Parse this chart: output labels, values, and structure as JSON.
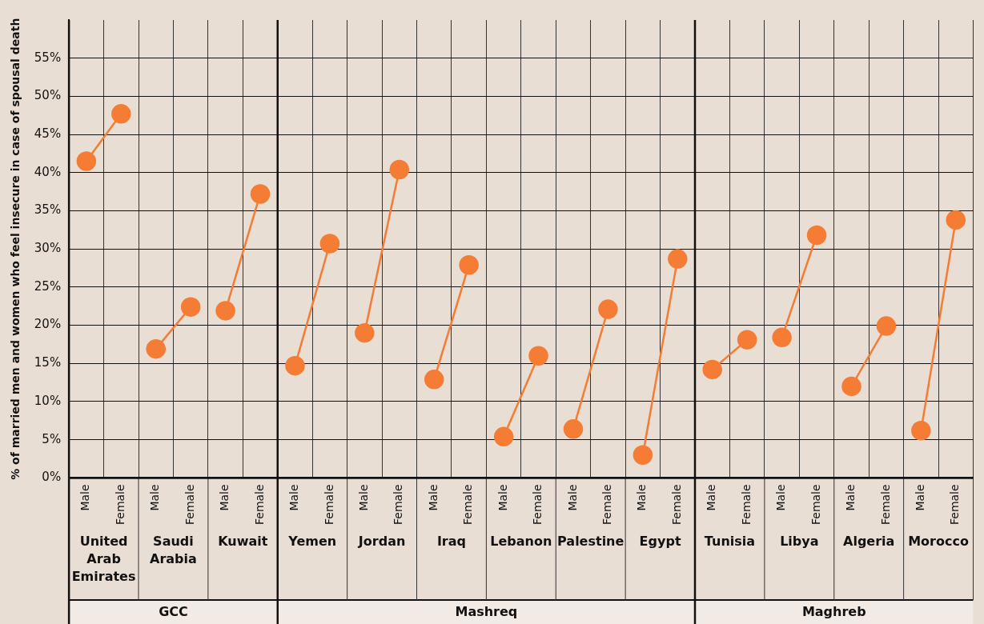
{
  "chart_data": {
    "type": "line",
    "ylabel": "% of married men and women who feel insecure in case of spousal death",
    "categories": [
      "Male",
      "Female",
      "Male",
      "Female",
      "Male",
      "Female",
      "Male",
      "Female",
      "Male",
      "Female",
      "Male",
      "Female",
      "Male",
      "Female",
      "Male",
      "Female",
      "Male",
      "Female",
      "Male",
      "Female",
      "Male",
      "Female",
      "Male",
      "Female",
      "Male",
      "Female"
    ],
    "series": [
      {
        "color": "#f47c34",
        "values": [
          41.5,
          47.7,
          null,
          null,
          null,
          null,
          null,
          null,
          null,
          null,
          null,
          null,
          null,
          null,
          null,
          null,
          null,
          null,
          null,
          null,
          null,
          null,
          null,
          null,
          null,
          null
        ]
      },
      {
        "color": "#f47c34",
        "values": [
          null,
          null,
          16.9,
          22.4,
          null,
          null,
          null,
          null,
          null,
          null,
          null,
          null,
          null,
          null,
          null,
          null,
          null,
          null,
          null,
          null,
          null,
          null,
          null,
          null,
          null,
          null
        ]
      },
      {
        "color": "#f47c34",
        "values": [
          null,
          null,
          null,
          null,
          21.9,
          37.2,
          null,
          null,
          null,
          null,
          null,
          null,
          null,
          null,
          null,
          null,
          null,
          null,
          null,
          null,
          null,
          null,
          null,
          null,
          null,
          null
        ]
      },
      {
        "color": "#f47c34",
        "values": [
          null,
          null,
          null,
          null,
          null,
          null,
          14.7,
          30.7,
          null,
          null,
          null,
          null,
          null,
          null,
          null,
          null,
          null,
          null,
          null,
          null,
          null,
          null,
          null,
          null,
          null,
          null
        ]
      },
      {
        "color": "#f47c34",
        "values": [
          null,
          null,
          null,
          null,
          null,
          null,
          null,
          null,
          19.0,
          40.4,
          null,
          null,
          null,
          null,
          null,
          null,
          null,
          null,
          null,
          null,
          null,
          null,
          null,
          null,
          null,
          null
        ]
      },
      {
        "color": "#f47c34",
        "values": [
          null,
          null,
          null,
          null,
          null,
          null,
          null,
          null,
          null,
          null,
          12.9,
          27.9,
          null,
          null,
          null,
          null,
          null,
          null,
          null,
          null,
          null,
          null,
          null,
          null,
          null,
          null
        ]
      },
      {
        "color": "#f47c34",
        "values": [
          null,
          null,
          null,
          null,
          null,
          null,
          null,
          null,
          null,
          null,
          null,
          null,
          5.4,
          16.0,
          null,
          null,
          null,
          null,
          null,
          null,
          null,
          null,
          null,
          null,
          null,
          null
        ]
      },
      {
        "color": "#f47c34",
        "values": [
          null,
          null,
          null,
          null,
          null,
          null,
          null,
          null,
          null,
          null,
          null,
          null,
          null,
          null,
          6.4,
          22.1,
          null,
          null,
          null,
          null,
          null,
          null,
          null,
          null,
          null,
          null
        ]
      },
      {
        "color": "#f47c34",
        "values": [
          null,
          null,
          null,
          null,
          null,
          null,
          null,
          null,
          null,
          null,
          null,
          null,
          null,
          null,
          null,
          null,
          3.0,
          28.7,
          null,
          null,
          null,
          null,
          null,
          null,
          null,
          null
        ]
      },
      {
        "color": "#f47c34",
        "values": [
          null,
          null,
          null,
          null,
          null,
          null,
          null,
          null,
          null,
          null,
          null,
          null,
          null,
          null,
          null,
          null,
          null,
          null,
          14.2,
          18.1,
          null,
          null,
          null,
          null,
          null,
          null
        ]
      },
      {
        "color": "#f47c34",
        "values": [
          null,
          null,
          null,
          null,
          null,
          null,
          null,
          null,
          null,
          null,
          null,
          null,
          null,
          null,
          null,
          null,
          null,
          null,
          null,
          null,
          18.4,
          31.8,
          null,
          null,
          null,
          null
        ]
      },
      {
        "color": "#f47c34",
        "values": [
          null,
          null,
          null,
          null,
          null,
          null,
          null,
          null,
          null,
          null,
          null,
          null,
          null,
          null,
          null,
          null,
          null,
          null,
          null,
          null,
          null,
          null,
          12.0,
          19.9,
          null,
          null
        ]
      },
      {
        "color": "#f47c34",
        "values": [
          null,
          null,
          null,
          null,
          null,
          null,
          null,
          null,
          null,
          null,
          null,
          null,
          null,
          null,
          null,
          null,
          null,
          null,
          null,
          null,
          null,
          null,
          null,
          null,
          6.2,
          33.8
        ]
      }
    ],
    "annotations": [
      "United Arab Emirates",
      "Saudi Arabia",
      "Kuwait",
      "Yemen",
      "Jordan",
      "Iraq",
      "Lebanon",
      "Palestine",
      "Egypt",
      "Tunisia",
      "Libya",
      "Algeria",
      "Morocco",
      "GCC",
      "Mashreq",
      "Maghreb"
    ],
    "ylim": [
      0,
      60
    ],
    "yticks": [
      {
        "value": 0,
        "label": "0%"
      },
      {
        "value": 5,
        "label": "5%"
      },
      {
        "value": 10,
        "label": "10%"
      },
      {
        "value": 15,
        "label": "15%"
      },
      {
        "value": 20,
        "label": "20%"
      },
      {
        "value": 25,
        "label": "25%"
      },
      {
        "value": 30,
        "label": "30%"
      },
      {
        "value": 35,
        "label": "35%"
      },
      {
        "value": 40,
        "label": "40%"
      },
      {
        "value": 45,
        "label": "45%"
      },
      {
        "value": 50,
        "label": "50%"
      },
      {
        "value": 55,
        "label": "55%"
      }
    ],
    "grid": true,
    "legend": false,
    "marker": "circle",
    "line_style": "solid"
  }
}
